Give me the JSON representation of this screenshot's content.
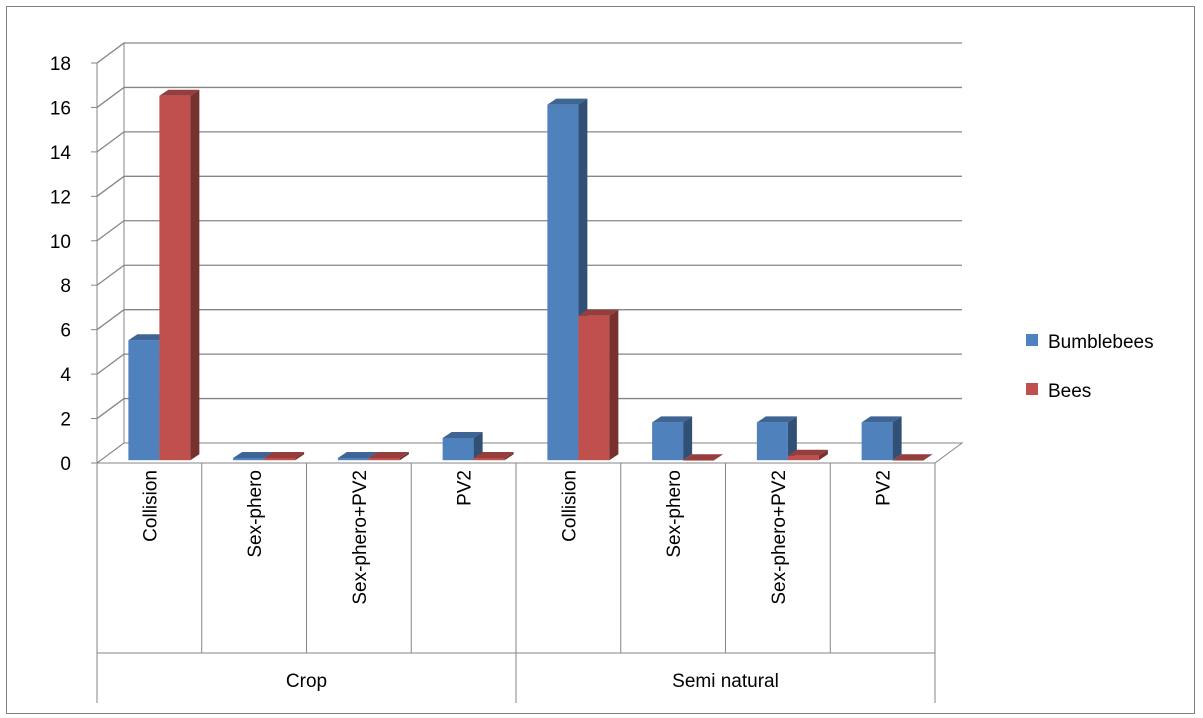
{
  "chart_data": {
    "type": "bar",
    "groups": [
      {
        "name": "Crop",
        "categories": [
          "Collision",
          "Sex-phero",
          "Sex-phero+PV2",
          "PV2"
        ]
      },
      {
        "name": "Semi natural",
        "categories": [
          "Collision",
          "Sex-phero",
          "Sex-phero+PV2",
          "PV2"
        ]
      }
    ],
    "categories": [
      "Collision",
      "Sex-phero",
      "Sex-phero+PV2",
      "PV2",
      "Collision",
      "Sex-phero",
      "Sex-phero+PV2",
      "PV2"
    ],
    "series": [
      {
        "name": "Bumblebees",
        "color": "#4f81bd",
        "values": [
          5.4,
          0.1,
          0.1,
          1.0,
          16.0,
          1.7,
          1.7,
          1.7
        ]
      },
      {
        "name": "Bees",
        "color": "#c0504d",
        "values": [
          16.4,
          0.1,
          0.1,
          0.1,
          6.5,
          0.0,
          0.2,
          0.0
        ]
      }
    ],
    "yticks": [
      "0",
      "2",
      "4",
      "6",
      "8",
      "10",
      "12",
      "14",
      "16",
      "18"
    ],
    "ylim": [
      0,
      18
    ],
    "grid": true,
    "legend_position": "right",
    "title": "",
    "xlabel": "",
    "ylabel": ""
  }
}
